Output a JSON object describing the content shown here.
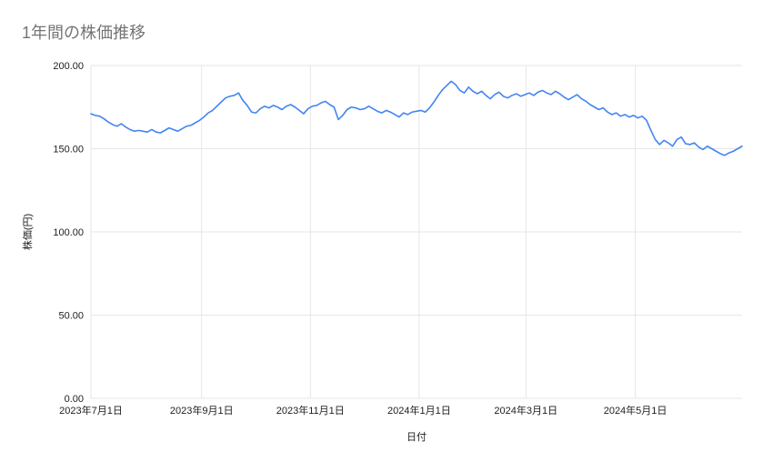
{
  "page": {
    "title": "1年間の株価推移"
  },
  "colors": {
    "line": "#4285f4",
    "grid": "#e6e6e6",
    "axis": "#e6e6e6",
    "title_text": "#757575",
    "tick_text": "#202124",
    "background": "#ffffff"
  },
  "chart_data": {
    "type": "line",
    "title": "1年間の株価推移",
    "xlabel": "日付",
    "ylabel": "株価(円)",
    "x_start": "2023年7月1日",
    "x_end": "2024年6月30日",
    "ylim": [
      0,
      200
    ],
    "grid": true,
    "legend": "none",
    "y_ticks": [
      {
        "label": "0.00",
        "value": 0
      },
      {
        "label": "50.00",
        "value": 50
      },
      {
        "label": "100.00",
        "value": 100
      },
      {
        "label": "150.00",
        "value": 150
      },
      {
        "label": "200.00",
        "value": 200
      }
    ],
    "x_ticks": [
      {
        "label": "2023年7月1日",
        "pos": 0.0
      },
      {
        "label": "2023年9月1日",
        "pos": 0.17
      },
      {
        "label": "2023年11月1日",
        "pos": 0.337
      },
      {
        "label": "2024年1月1日",
        "pos": 0.504
      },
      {
        "label": "2024年3月1日",
        "pos": 0.668
      },
      {
        "label": "2024年5月1日",
        "pos": 0.836
      }
    ],
    "series": [
      {
        "name": "株価",
        "values": [
          171,
          170,
          169.5,
          168,
          166,
          164.5,
          163.5,
          165,
          163,
          161.5,
          160.5,
          161,
          160.5,
          160,
          161.5,
          160,
          159.5,
          161,
          162.5,
          161.5,
          160.5,
          162,
          163.5,
          164,
          165.5,
          167,
          169,
          171.5,
          173,
          175.5,
          178,
          180.5,
          181.5,
          182,
          183.5,
          179,
          176,
          172,
          171.5,
          174,
          175.5,
          174.5,
          176,
          175,
          173.5,
          175.5,
          176.5,
          175,
          173,
          171,
          174,
          175.5,
          176,
          177.5,
          178.5,
          176.5,
          175,
          167.5,
          170,
          173.5,
          175,
          174.5,
          173.5,
          174,
          175.5,
          174,
          172.5,
          171.5,
          173,
          172,
          170.5,
          169,
          171.5,
          170.5,
          172,
          172.5,
          173,
          172,
          174.5,
          178,
          182,
          185.5,
          188,
          190.5,
          188.5,
          185,
          183.5,
          187,
          184.5,
          183,
          184.5,
          182,
          180,
          182.5,
          184,
          181.5,
          180.5,
          182,
          183,
          181.5,
          182.5,
          183.5,
          182,
          184,
          185,
          183.5,
          182.5,
          184.5,
          183,
          181,
          179.5,
          181,
          182.5,
          180,
          178.5,
          176.5,
          175,
          173.5,
          174.5,
          172,
          170.5,
          171.5,
          169.5,
          170.5,
          169,
          170,
          168.5,
          169.5,
          167,
          161,
          155.5,
          152.5,
          155,
          153.5,
          151.5,
          155.5,
          157,
          153,
          152.5,
          153.5,
          151,
          149.5,
          151.5,
          150,
          148.5,
          147,
          146,
          147.5,
          148.5,
          150,
          151.5
        ]
      }
    ]
  }
}
